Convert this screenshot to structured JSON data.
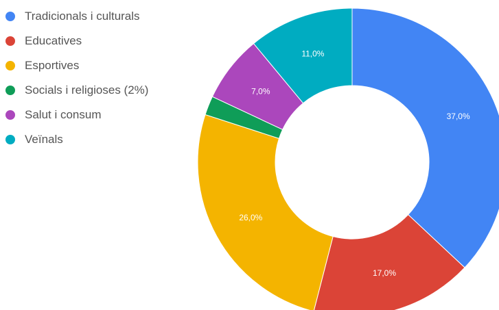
{
  "chart_data": {
    "type": "pie",
    "title": "",
    "donut": true,
    "legend_position": "left",
    "slices": [
      {
        "name": "Tradicionals i culturals",
        "value": 37.0,
        "label": "37,0%",
        "color": "#4285f4"
      },
      {
        "name": "Educatives",
        "value": 17.0,
        "label": "17,0%",
        "color": "#db4437"
      },
      {
        "name": "Esportives",
        "value": 26.0,
        "label": "26,0%",
        "color": "#f4b400"
      },
      {
        "name": "Socials i religioses (2%)",
        "value": 2.0,
        "label": "",
        "color": "#0f9d58"
      },
      {
        "name": "Salut i consum",
        "value": 7.0,
        "label": "7,0%",
        "color": "#ab47bc"
      },
      {
        "name": "Veïnals",
        "value": 11.0,
        "label": "11,0%",
        "color": "#00acc1"
      }
    ]
  }
}
